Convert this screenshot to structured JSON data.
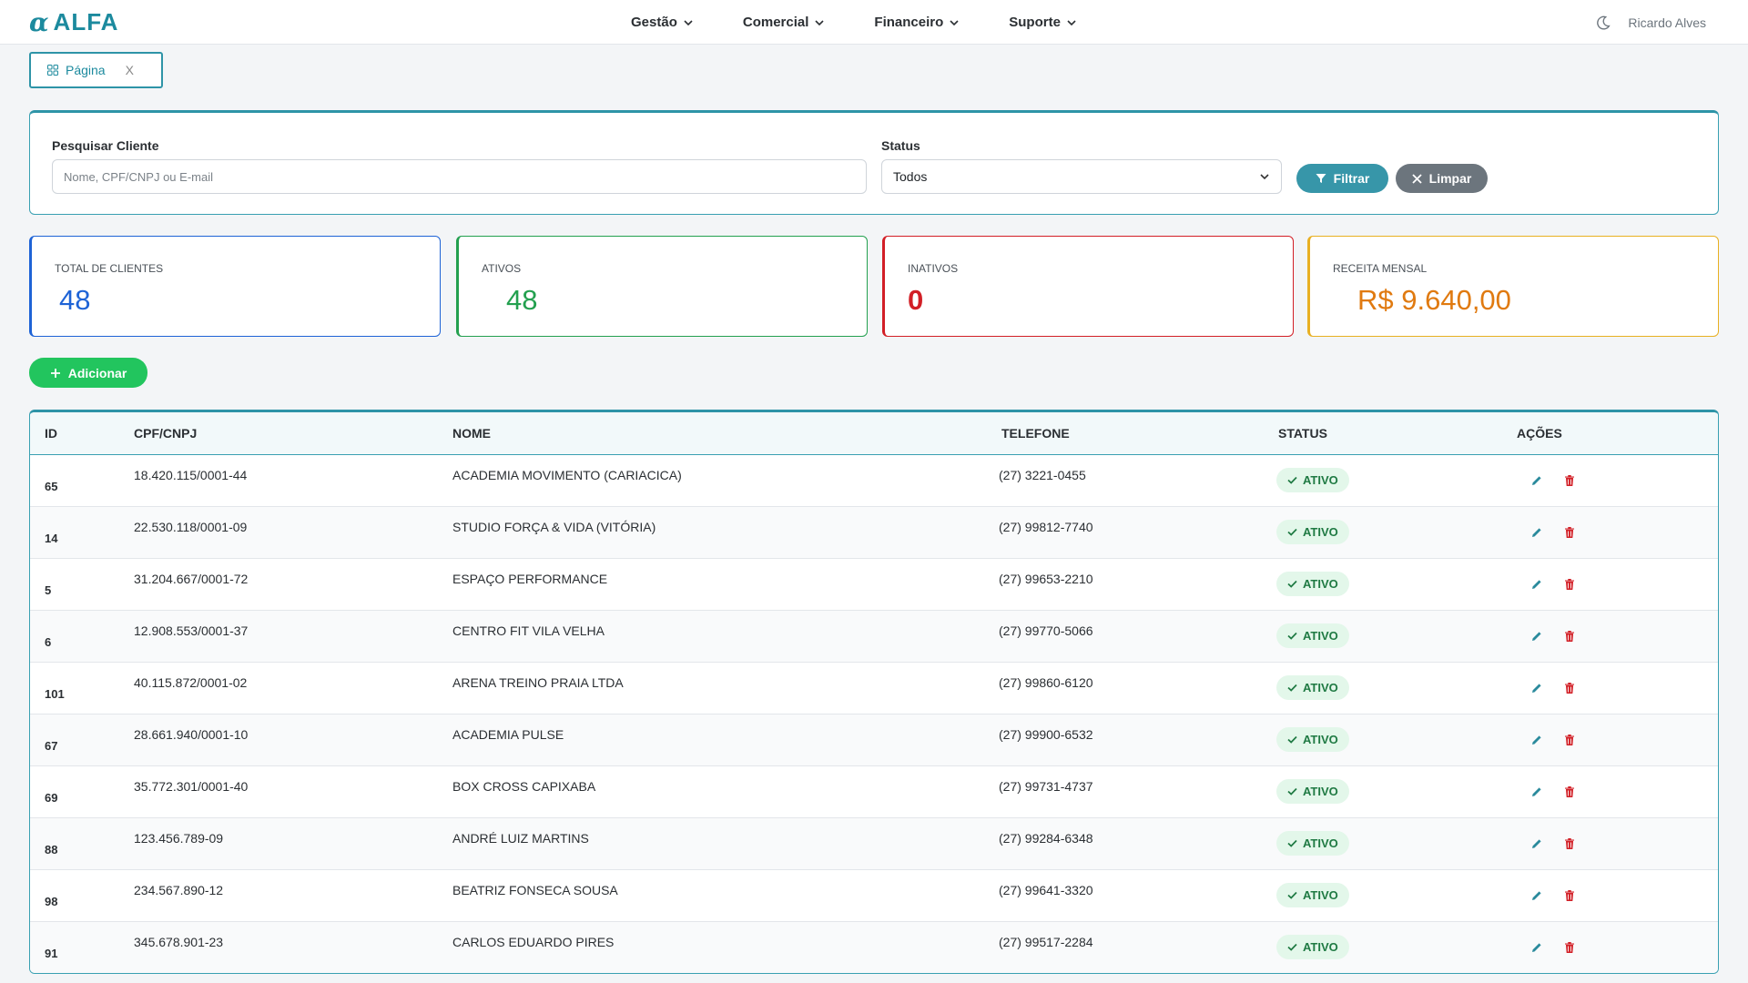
{
  "app": {
    "logo_text": "ALFA",
    "logo_symbol": "α"
  },
  "nav": {
    "items": [
      {
        "label": "Gestão"
      },
      {
        "label": "Comercial"
      },
      {
        "label": "Financeiro"
      },
      {
        "label": "Suporte"
      }
    ],
    "user_name": "Ricardo Alves"
  },
  "tab": {
    "label": "Página",
    "close": "X"
  },
  "filters": {
    "search_label": "Pesquisar Cliente",
    "search_placeholder": "Nome, CPF/CNPJ ou E-mail",
    "status_label": "Status",
    "status_value": "Todos",
    "filter_button": "Filtrar",
    "clear_button": "Limpar"
  },
  "stats": {
    "total_label": "TOTAL DE CLIENTES",
    "total_value": "48",
    "active_label": "ATIVOS",
    "active_value": "48",
    "inactive_label": "INATIVOS",
    "inactive_value": "0",
    "revenue_label": "RECEITA MENSAL",
    "revenue_value": "R$ 9.640,00"
  },
  "colors": {
    "accent": "#2e94a7",
    "total": "#1e63d6",
    "active": "#23a04f",
    "inactive": "#d21f26",
    "revenue": "#e07a10"
  },
  "add_button": "Adicionar",
  "table": {
    "headers": {
      "id": "ID",
      "doc": "CPF/CNPJ",
      "name": "NOME",
      "phone": "TELEFONE",
      "status": "STATUS",
      "actions": "AÇÕES"
    },
    "rows": [
      {
        "id": "65",
        "doc": "18.420.115/0001-44",
        "name": "ACADEMIA MOVIMENTO (CARIACICA)",
        "phone": "(27) 3221-0455",
        "status": "ATIVO"
      },
      {
        "id": "14",
        "doc": "22.530.118/0001-09",
        "name": "STUDIO FORÇA & VIDA (VITÓRIA)",
        "phone": "(27) 99812-7740",
        "status": "ATIVO"
      },
      {
        "id": "5",
        "doc": "31.204.667/0001-72",
        "name": "ESPAÇO PERFORMANCE",
        "phone": "(27) 99653-2210",
        "status": "ATIVO"
      },
      {
        "id": "6",
        "doc": "12.908.553/0001-37",
        "name": "CENTRO FIT VILA VELHA",
        "phone": "(27) 99770-5066",
        "status": "ATIVO"
      },
      {
        "id": "101",
        "doc": "40.115.872/0001-02",
        "name": "ARENA TREINO PRAIA LTDA",
        "phone": "(27) 99860-6120",
        "status": "ATIVO"
      },
      {
        "id": "67",
        "doc": "28.661.940/0001-10",
        "name": "ACADEMIA PULSE",
        "phone": "(27) 99900-6532",
        "status": "ATIVO"
      },
      {
        "id": "69",
        "doc": "35.772.301/0001-40",
        "name": "BOX CROSS CAPIXABA",
        "phone": "(27) 99731-4737",
        "status": "ATIVO"
      },
      {
        "id": "88",
        "doc": "123.456.789-09",
        "name": "ANDRÉ LUIZ MARTINS",
        "phone": "(27) 99284-6348",
        "status": "ATIVO"
      },
      {
        "id": "98",
        "doc": "234.567.890-12",
        "name": "BEATRIZ FONSECA SOUSA",
        "phone": "(27) 99641-3320",
        "status": "ATIVO"
      },
      {
        "id": "91",
        "doc": "345.678.901-23",
        "name": "CARLOS EDUARDO PIRES",
        "phone": "(27) 99517-2284",
        "status": "ATIVO"
      }
    ]
  }
}
